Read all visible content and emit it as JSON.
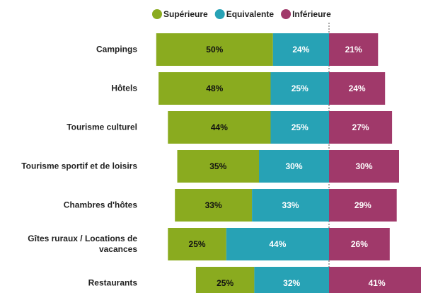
{
  "chart_data": {
    "type": "diverging_bar",
    "categories": [
      "Campings",
      "Hôtels",
      "Tourisme culturel",
      "Tourisme sportif et de loisirs",
      "Chambres d'hôtes",
      "Gîtes ruraux / Locations de vacances",
      "Restaurants"
    ],
    "series": [
      {
        "name": "Supérieure",
        "color": "#8aab1f",
        "values": [
          50,
          48,
          44,
          35,
          33,
          25,
          25
        ],
        "value_labels": [
          "50%",
          "48%",
          "44%",
          "35%",
          "33%",
          "25%",
          "25%"
        ]
      },
      {
        "name": "Equivalente",
        "color": "#27a2b5",
        "values": [
          24,
          25,
          25,
          30,
          33,
          44,
          32
        ],
        "value_labels": [
          "24%",
          "25%",
          "25%",
          "30%",
          "33%",
          "44%",
          "32%"
        ]
      },
      {
        "name": "Inférieure",
        "color": "#a0396a",
        "values": [
          21,
          24,
          27,
          30,
          29,
          26,
          41
        ],
        "value_labels": [
          "21%",
          "24%",
          "27%",
          "30%",
          "29%",
          "26%",
          "41%"
        ]
      }
    ]
  }
}
